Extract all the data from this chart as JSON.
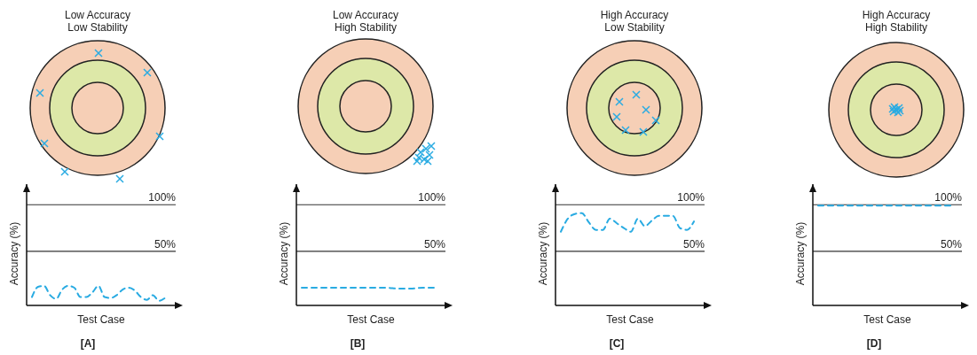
{
  "chart_data": [
    {
      "type": "line",
      "title": "Low Accuracy\nLow Stability",
      "xlabel": "Test Case",
      "ylabel": "Accuracy (%)",
      "annotations": [
        "[A]"
      ],
      "categories": [
        null,
        null,
        null,
        null,
        null,
        null,
        null,
        null,
        null,
        null,
        null,
        null,
        null,
        null,
        null,
        null,
        null,
        null,
        null,
        null,
        null,
        null,
        null
      ],
      "series": [
        {
          "color": "#29abe2",
          "values": [
            1,
            12,
            13,
            3,
            -1,
            9,
            13,
            11,
            1,
            1,
            6,
            13,
            1,
            0,
            3,
            9,
            11,
            8,
            1,
            -2,
            3,
            -3,
            0
          ]
        }
      ],
      "ylim": [
        -8,
        122
      ],
      "ref_lines": [
        {
          "axis": "y",
          "value": 50,
          "label": "50%"
        },
        {
          "axis": "y",
          "value": 100,
          "label": "100%"
        }
      ],
      "line_style": "dashed"
    },
    {
      "type": "line",
      "title": "Low Accuracy\nHigh Stability",
      "xlabel": "Test Case",
      "ylabel": "Accuracy (%)",
      "annotations": [
        "[B]"
      ],
      "categories": [
        null,
        null,
        null,
        null,
        null,
        null,
        null,
        null,
        null,
        null,
        null,
        null
      ],
      "series": [
        {
          "color": "#29abe2",
          "values": [
            11,
            11,
            11,
            11,
            11,
            11,
            11,
            11,
            10,
            10,
            11,
            11
          ]
        }
      ],
      "ylim": [
        -8,
        122
      ],
      "ref_lines": [
        {
          "axis": "y",
          "value": 50,
          "label": "50%"
        },
        {
          "axis": "y",
          "value": 100,
          "label": "100%"
        }
      ],
      "line_style": "dashed"
    },
    {
      "type": "line",
      "title": "High Accuracy\nLow Stability",
      "xlabel": "Test Case",
      "ylabel": "Accuracy (%)",
      "annotations": [
        "[C]"
      ],
      "categories": [
        null,
        null,
        null,
        null,
        null,
        null,
        null,
        null,
        null,
        null,
        null,
        null,
        null,
        null,
        null,
        null,
        null,
        null,
        null,
        null
      ],
      "series": [
        {
          "color": "#29abe2",
          "values": [
            71,
            85,
            90,
            91,
            81,
            73,
            73,
            85,
            80,
            75,
            71,
            85,
            77,
            83,
            88,
            88,
            88,
            75,
            73,
            82
          ]
        }
      ],
      "ylim": [
        -8,
        122
      ],
      "ref_lines": [
        {
          "axis": "y",
          "value": 50,
          "label": "50%"
        },
        {
          "axis": "y",
          "value": 100,
          "label": "100%"
        }
      ],
      "line_style": "dashed"
    },
    {
      "type": "line",
      "title": "High Accuracy\nHigh Stability",
      "xlabel": "Test Case",
      "ylabel": "Accuracy (%)",
      "annotations": [
        "[D]"
      ],
      "categories": [
        null,
        null,
        null,
        null,
        null,
        null,
        null,
        null,
        null,
        null
      ],
      "series": [
        {
          "color": "#29abe2",
          "values": [
            99,
            99,
            99,
            99,
            99,
            99,
            99,
            99,
            99,
            99
          ]
        }
      ],
      "ylim": [
        -8,
        122
      ],
      "ref_lines": [
        {
          "axis": "y",
          "value": 50,
          "label": "50%"
        },
        {
          "axis": "y",
          "value": 100,
          "label": "100%"
        }
      ],
      "line_style": "dashed"
    }
  ]
}
